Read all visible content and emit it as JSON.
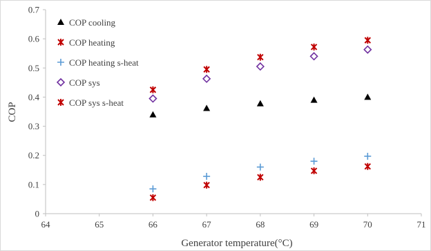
{
  "chart_data": {
    "type": "scatter",
    "title": "",
    "xlabel": "Generator temperature(°C)",
    "ylabel": "COP",
    "xlim": [
      64,
      71
    ],
    "ylim": [
      0,
      0.7
    ],
    "x_ticks": [
      "64",
      "65",
      "66",
      "67",
      "68",
      "69",
      "70",
      "71"
    ],
    "y_ticks": [
      "0",
      "0.1",
      "0.2",
      "0.3",
      "0.4",
      "0.5",
      "0.6",
      "0.7"
    ],
    "grid": false,
    "legend_position": "top-left",
    "series": [
      {
        "name": "COP cooling",
        "marker": "triangle",
        "color": "#000000",
        "points": [
          [
            66,
            0.34
          ],
          [
            67,
            0.362
          ],
          [
            68,
            0.378
          ],
          [
            69,
            0.39
          ],
          [
            70,
            0.4
          ]
        ]
      },
      {
        "name": "COP heating",
        "marker": "star",
        "color": "#c00000",
        "points": [
          [
            66,
            0.425
          ],
          [
            67,
            0.495
          ],
          [
            68,
            0.537
          ],
          [
            69,
            0.572
          ],
          [
            70,
            0.595
          ]
        ]
      },
      {
        "name": "COP heating s-heat",
        "marker": "plus",
        "color": "#5b9bd5",
        "points": [
          [
            66,
            0.085
          ],
          [
            67,
            0.128
          ],
          [
            68,
            0.16
          ],
          [
            69,
            0.18
          ],
          [
            70,
            0.197
          ]
        ]
      },
      {
        "name": "COP sys",
        "marker": "diamond",
        "color": "#7030a0",
        "points": [
          [
            66,
            0.395
          ],
          [
            67,
            0.463
          ],
          [
            68,
            0.505
          ],
          [
            69,
            0.54
          ],
          [
            70,
            0.563
          ]
        ]
      },
      {
        "name": "COP sys s-heat",
        "marker": "star",
        "color": "#c00000",
        "points": [
          [
            66,
            0.055
          ],
          [
            67,
            0.098
          ],
          [
            68,
            0.125
          ],
          [
            69,
            0.147
          ],
          [
            70,
            0.162
          ]
        ]
      }
    ]
  }
}
